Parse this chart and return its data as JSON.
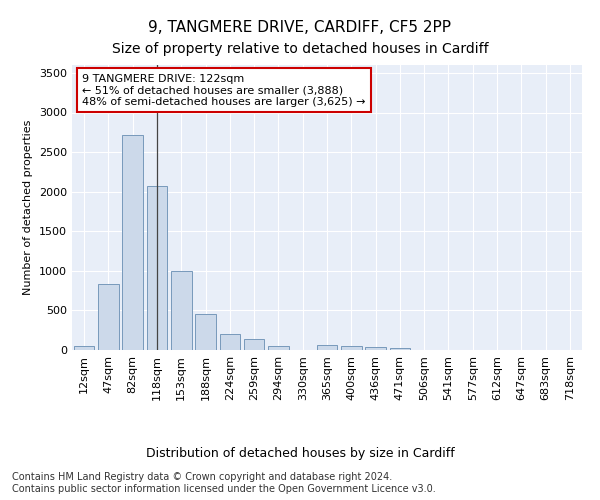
{
  "title1": "9, TANGMERE DRIVE, CARDIFF, CF5 2PP",
  "title2": "Size of property relative to detached houses in Cardiff",
  "xlabel": "Distribution of detached houses by size in Cardiff",
  "ylabel": "Number of detached properties",
  "categories": [
    "12sqm",
    "47sqm",
    "82sqm",
    "118sqm",
    "153sqm",
    "188sqm",
    "224sqm",
    "259sqm",
    "294sqm",
    "330sqm",
    "365sqm",
    "400sqm",
    "436sqm",
    "471sqm",
    "506sqm",
    "541sqm",
    "577sqm",
    "612sqm",
    "647sqm",
    "683sqm",
    "718sqm"
  ],
  "values": [
    55,
    840,
    2720,
    2070,
    1000,
    455,
    205,
    145,
    55,
    5,
    60,
    50,
    40,
    30,
    0,
    0,
    0,
    0,
    0,
    0,
    0
  ],
  "bar_color": "#ccd9ea",
  "bar_edge_color": "#7799bb",
  "annotation_text": "9 TANGMERE DRIVE: 122sqm\n← 51% of detached houses are smaller (3,888)\n48% of semi-detached houses are larger (3,625) →",
  "annotation_box_color": "white",
  "annotation_box_edge": "#cc0000",
  "vline_x_index": 3,
  "ylim": [
    0,
    3600
  ],
  "yticks": [
    0,
    500,
    1000,
    1500,
    2000,
    2500,
    3000,
    3500
  ],
  "bg_color": "#e8eef8",
  "footer": "Contains HM Land Registry data © Crown copyright and database right 2024.\nContains public sector information licensed under the Open Government Licence v3.0.",
  "title1_fontsize": 11,
  "title2_fontsize": 10,
  "xlabel_fontsize": 9,
  "ylabel_fontsize": 8,
  "tick_fontsize": 8,
  "annotation_fontsize": 8,
  "footer_fontsize": 7
}
